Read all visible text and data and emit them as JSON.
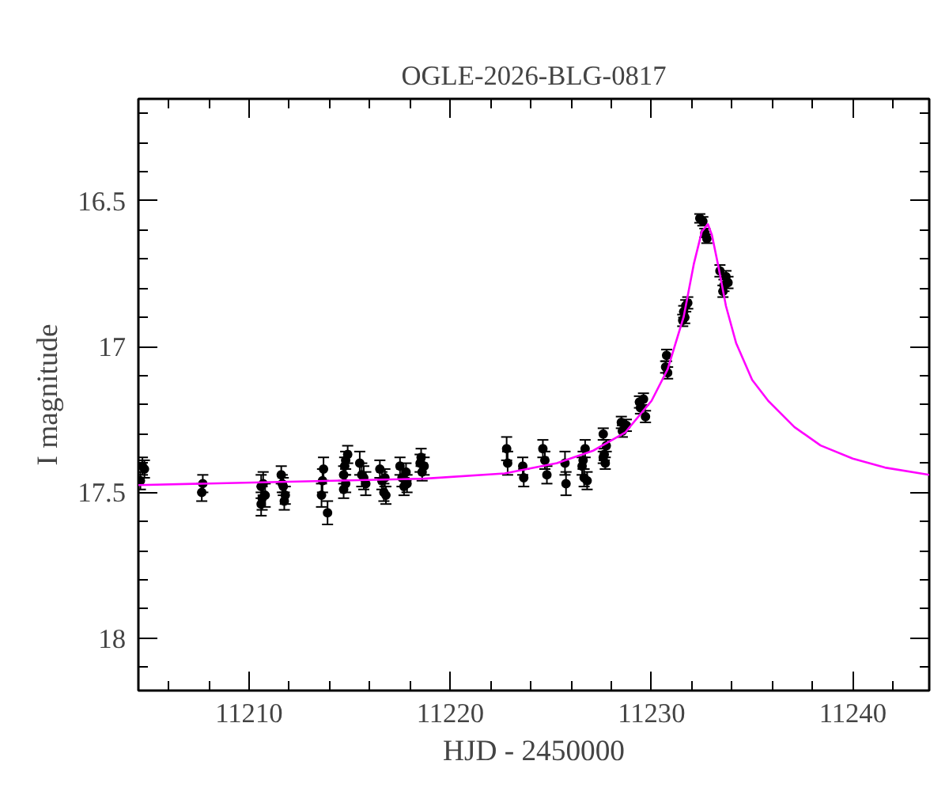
{
  "chart_data": {
    "type": "scatter",
    "title": "OGLE-2026-BLG-0817",
    "xlabel": "HJD - 2450000",
    "ylabel": "I magnitude",
    "xlim": [
      11204.5,
      11243.8
    ],
    "ylim": [
      18.18,
      16.15
    ],
    "xticks": [
      {
        "value": 11206,
        "label": null
      },
      {
        "value": 11208,
        "label": null
      },
      11210,
      {
        "value": 11212,
        "label": null
      },
      {
        "value": 11214,
        "label": null
      },
      {
        "value": 11216,
        "label": null
      },
      {
        "value": 11218,
        "label": null
      },
      11220,
      {
        "value": 11222,
        "label": null
      },
      {
        "value": 11224,
        "label": null
      },
      {
        "value": 11226,
        "label": null
      },
      {
        "value": 11228,
        "label": null
      },
      11230,
      {
        "value": 11232,
        "label": null
      },
      {
        "value": 11234,
        "label": null
      },
      {
        "value": 11236,
        "label": null
      },
      {
        "value": 11238,
        "label": null
      },
      11240,
      {
        "value": 11242,
        "label": null
      }
    ],
    "yticks": [
      {
        "value": 16.2,
        "label": null
      },
      {
        "value": 16.3,
        "label": null
      },
      {
        "value": 16.4,
        "label": null
      },
      16.5,
      {
        "value": 16.6,
        "label": null
      },
      {
        "value": 16.7,
        "label": null
      },
      {
        "value": 16.8,
        "label": null
      },
      {
        "value": 16.9,
        "label": null
      },
      17,
      {
        "value": 17.1,
        "label": null
      },
      {
        "value": 17.2,
        "label": null
      },
      {
        "value": 17.3,
        "label": null
      },
      {
        "value": 17.4,
        "label": null
      },
      17.5,
      {
        "value": 17.6,
        "label": null
      },
      {
        "value": 17.7,
        "label": null
      },
      {
        "value": 17.8,
        "label": null
      },
      {
        "value": 17.9,
        "label": null
      },
      18,
      {
        "value": 18.1,
        "label": null
      }
    ],
    "marker": "circle",
    "series": [
      {
        "color": "#000000",
        "x": [
          11204.6,
          11204.7,
          11204.8,
          11207.7,
          11207.65,
          11210.6,
          11210.65,
          11210.7,
          11210.6,
          11210.8,
          11211.6,
          11211.7,
          11211.8,
          11211.65,
          11211.75,
          11213.7,
          11213.65,
          11213.6,
          11213.9,
          11214.7,
          11214.8,
          11214.9,
          11214.7,
          11214.8,
          11214.75,
          11215.5,
          11215.6,
          11215.8,
          11215.7,
          11216.5,
          11216.6,
          11216.7,
          11216.8,
          11216.75,
          11217.5,
          11217.6,
          11217.7,
          11217.8,
          11217.85,
          11218.5,
          11218.6,
          11218.7,
          11218.55,
          11222.8,
          11222.85,
          11223.6,
          11223.65,
          11224.6,
          11224.7,
          11224.8,
          11225.7,
          11225.75,
          11226.6,
          11226.7,
          11226.65,
          11226.8,
          11226.55,
          11227.6,
          11227.65,
          11227.7,
          11227.75,
          11227.6,
          11228.5,
          11228.75,
          11228.55,
          11229.4,
          11229.5,
          11229.6,
          11229.7,
          11229.45,
          11230.7,
          11230.75,
          11230.8,
          11231.6,
          11231.7,
          11231.8,
          11231.55,
          11231.65,
          11232.4,
          11232.55,
          11232.65,
          11232.75,
          11233.4,
          11233.55,
          11233.7,
          11233.8,
          11233.6
        ],
        "values": [
          17.46,
          17.41,
          17.42,
          17.47,
          17.5,
          17.48,
          17.52,
          17.47,
          17.54,
          17.51,
          17.44,
          17.48,
          17.51,
          17.47,
          17.53,
          17.42,
          17.46,
          17.51,
          17.57,
          17.44,
          17.39,
          17.37,
          17.49,
          17.47,
          17.41,
          17.4,
          17.44,
          17.47,
          17.45,
          17.42,
          17.46,
          17.5,
          17.51,
          17.45,
          17.41,
          17.45,
          17.48,
          17.43,
          17.47,
          17.4,
          17.43,
          17.41,
          17.38,
          17.35,
          17.4,
          17.41,
          17.45,
          17.35,
          17.39,
          17.44,
          17.4,
          17.47,
          17.39,
          17.35,
          17.45,
          17.46,
          17.41,
          17.3,
          17.37,
          17.4,
          17.34,
          17.38,
          17.26,
          17.27,
          17.29,
          17.19,
          17.21,
          17.18,
          17.24,
          17.21,
          17.07,
          17.03,
          17.09,
          16.88,
          16.86,
          16.85,
          16.91,
          16.9,
          16.56,
          16.57,
          16.61,
          16.63,
          16.74,
          16.81,
          16.76,
          16.78,
          16.79
        ],
        "errors": [
          0.03,
          0.03,
          0.03,
          0.03,
          0.03,
          0.04,
          0.04,
          0.04,
          0.04,
          0.04,
          0.03,
          0.03,
          0.03,
          0.03,
          0.03,
          0.04,
          0.04,
          0.04,
          0.04,
          0.03,
          0.03,
          0.03,
          0.03,
          0.03,
          0.03,
          0.04,
          0.04,
          0.04,
          0.04,
          0.03,
          0.03,
          0.03,
          0.03,
          0.03,
          0.03,
          0.03,
          0.03,
          0.03,
          0.03,
          0.03,
          0.03,
          0.03,
          0.03,
          0.04,
          0.04,
          0.03,
          0.03,
          0.03,
          0.03,
          0.03,
          0.04,
          0.04,
          0.03,
          0.03,
          0.03,
          0.03,
          0.03,
          0.02,
          0.02,
          0.02,
          0.02,
          0.02,
          0.02,
          0.02,
          0.02,
          0.02,
          0.02,
          0.02,
          0.02,
          0.02,
          0.02,
          0.02,
          0.02,
          0.02,
          0.02,
          0.02,
          0.02,
          0.02,
          0.015,
          0.015,
          0.015,
          0.015,
          0.02,
          0.02,
          0.02,
          0.02,
          0.02
        ]
      },
      {
        "type": "line",
        "marker": "none",
        "color": "#ff00ff",
        "x": [
          11204.5,
          11218.7,
          11222.7,
          11225.3,
          11227.1,
          11228.7,
          11230.0,
          11230.8,
          11231.6,
          11232.1,
          11232.5,
          11232.8,
          11233.0,
          11233.3,
          11233.7,
          11234.2,
          11235.0,
          11235.8,
          11237.1,
          11238.4,
          11240.0,
          11241.6,
          11243.8
        ],
        "values": [
          17.475,
          17.453,
          17.435,
          17.4,
          17.357,
          17.294,
          17.186,
          17.078,
          16.897,
          16.717,
          16.605,
          16.58,
          16.617,
          16.717,
          16.861,
          16.987,
          17.114,
          17.186,
          17.276,
          17.339,
          17.384,
          17.415,
          17.44
        ]
      }
    ]
  }
}
